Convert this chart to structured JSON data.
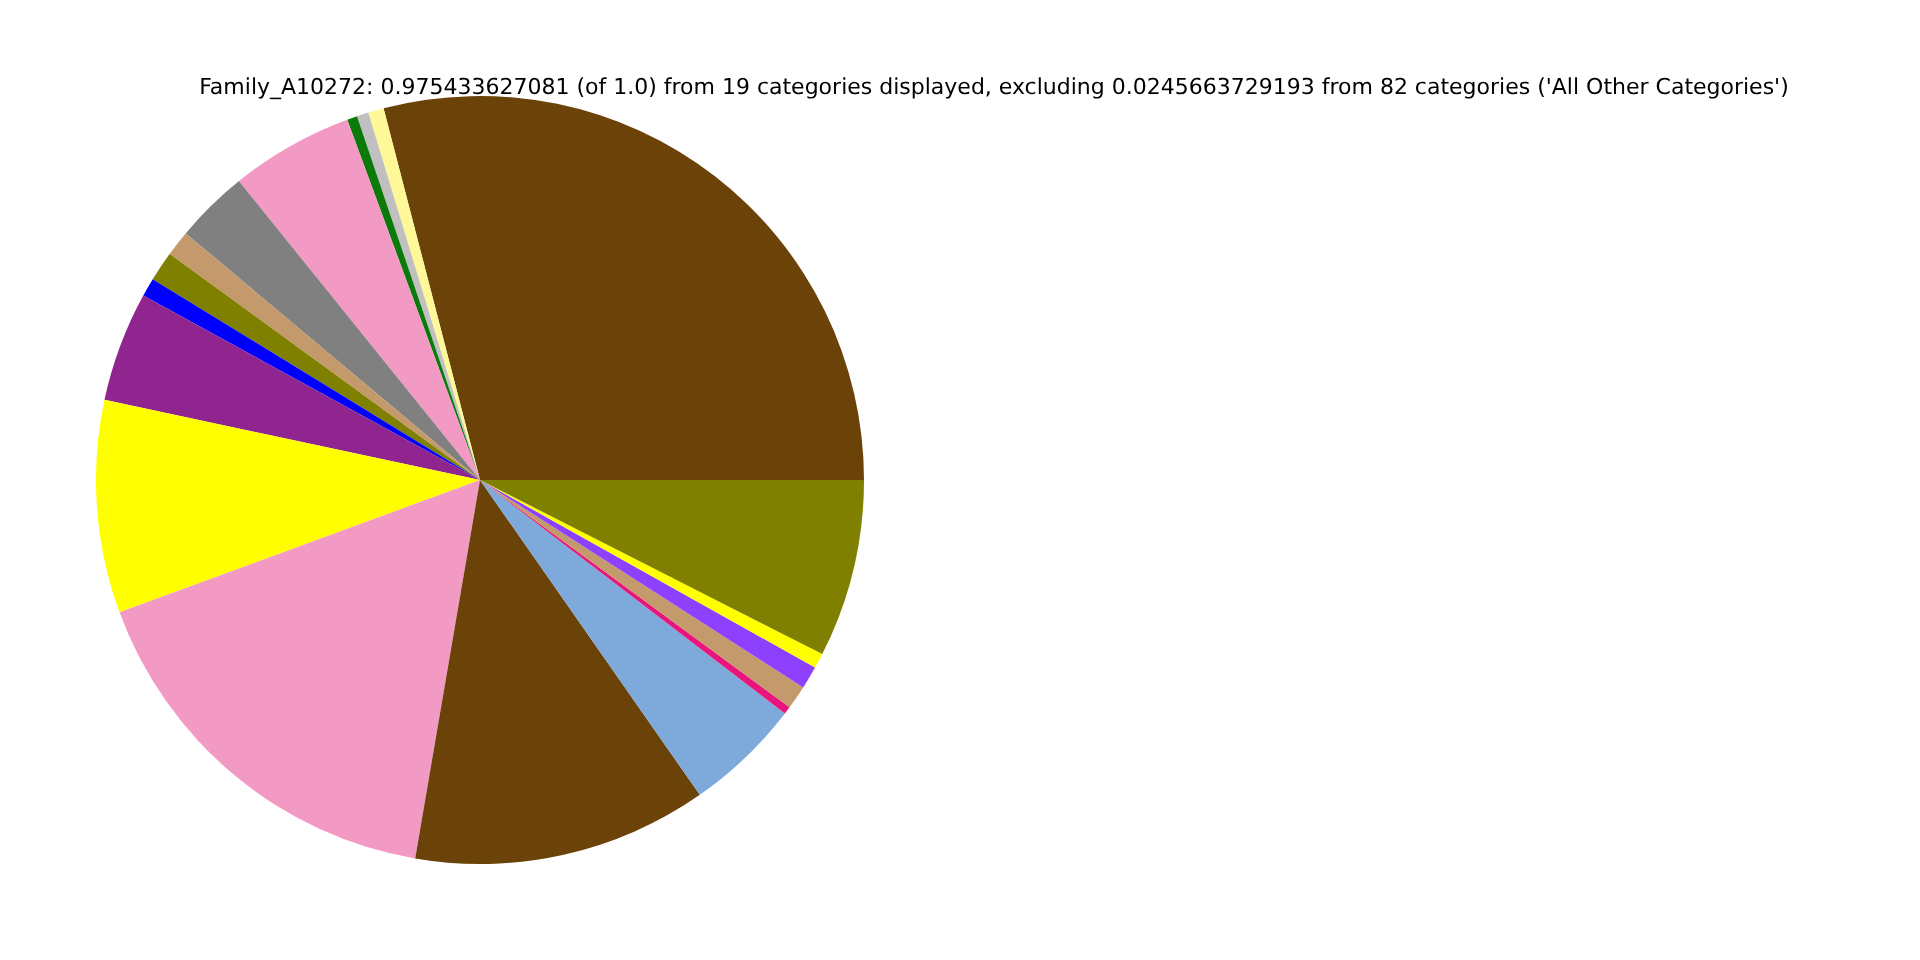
{
  "chart_data": {
    "type": "pie",
    "title": "Family_A10272: 0.975433627081 (of 1.0) from 19 categories displayed, excluding 0.0245663729193 from 82 categories ('All Other Categories')",
    "categories": [
      null,
      null,
      null,
      null,
      null,
      null,
      null,
      null,
      null,
      null,
      null,
      null,
      null,
      null,
      null,
      null,
      null,
      null,
      null
    ],
    "values": [
      29.04,
      0.66,
      0.49,
      0.43,
      5.18,
      3.1,
      1.08,
      1.26,
      0.78,
      4.63,
      8.95,
      16.7,
      12.4,
      4.9,
      0.32,
      1.0,
      0.96,
      0.63,
      7.49
    ],
    "colors": [
      "#6b4309",
      "#fff899",
      "#c0c0c0",
      "#0b7a0b",
      "#f39ac4",
      "#808080",
      "#c49a6c",
      "#808000",
      "#0000ff",
      "#912590",
      "#ffff00",
      "#f39ac4",
      "#6b4309",
      "#7eaadb",
      "#e8157c",
      "#c49a6c",
      "#8e40ff",
      "#ffff00",
      "#808000"
    ]
  }
}
